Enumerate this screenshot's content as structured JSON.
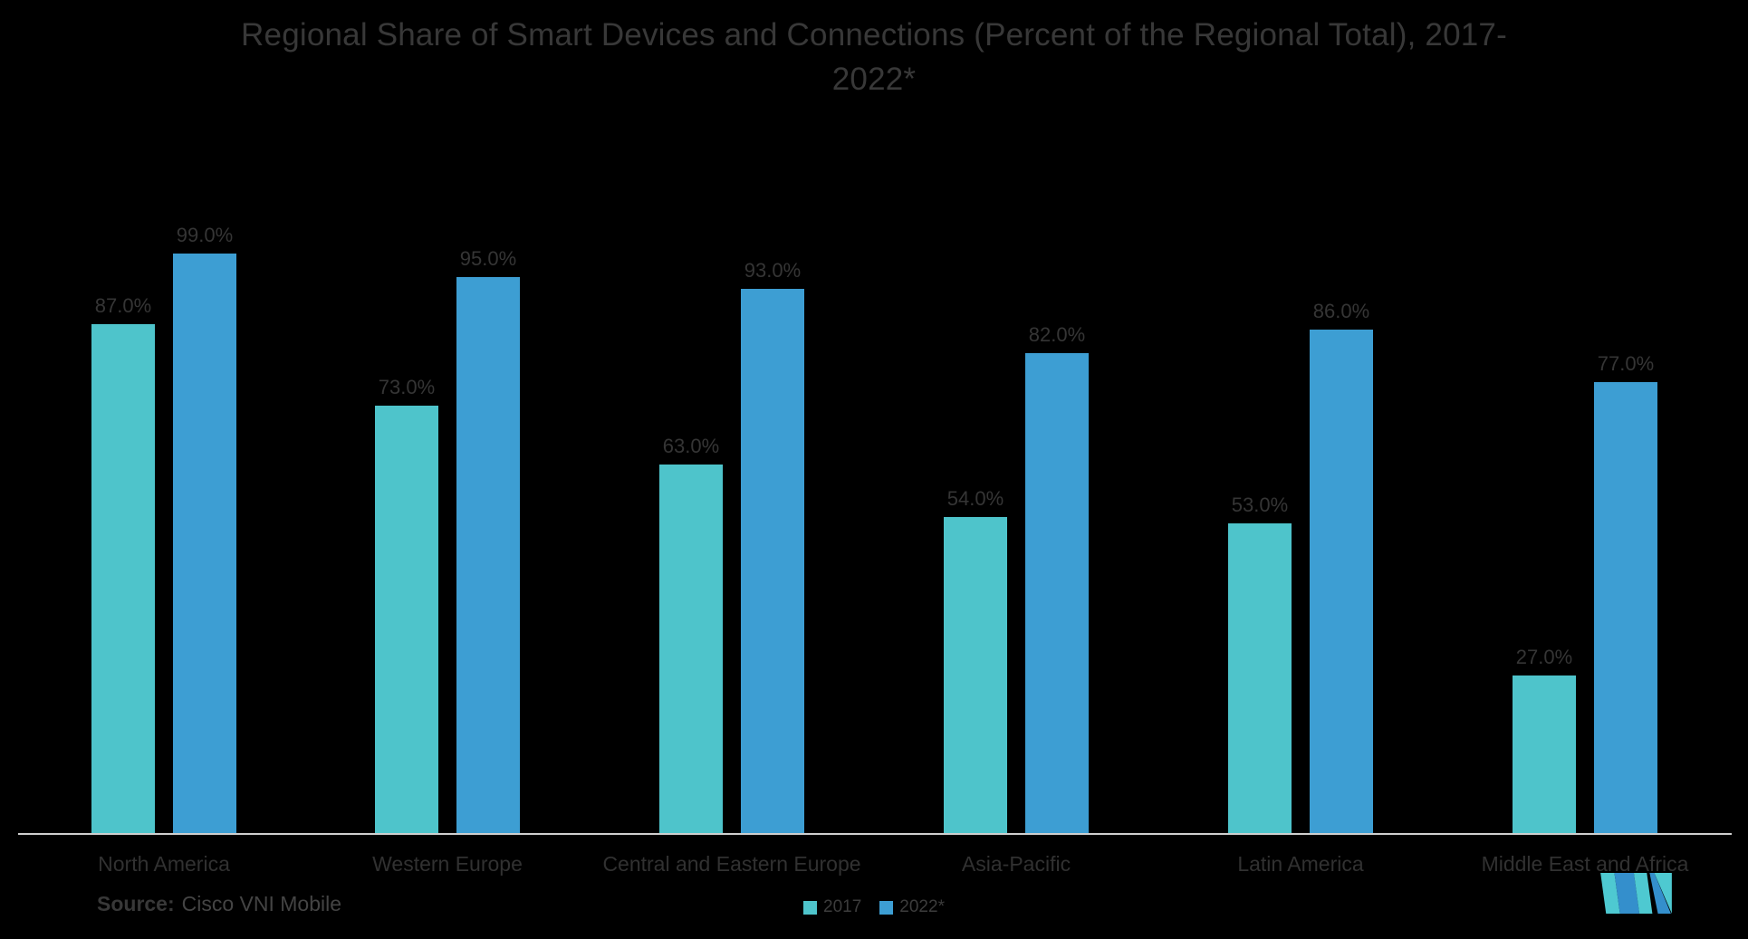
{
  "title": {
    "line1": "Regional Share of Smart Devices and Connections (Percent of the Regional Total), 2017-",
    "line2": "2022*"
  },
  "source": {
    "label": "Source:",
    "value": "Cisco VNI Mobile"
  },
  "colors": {
    "background": "#000000",
    "series_2017": "#4ec4cb",
    "series_2022": "#3d9ed3",
    "axis_line": "#cfcfcf",
    "text": "#383838",
    "logo_teal": "#4ec9d1",
    "logo_blue": "#348fcc"
  },
  "chart_data": {
    "type": "bar",
    "title": "Regional Share of Smart Devices and Connections (Percent of the Regional Total), 2017-2022*",
    "categories": [
      "North America",
      "Western Europe",
      "Central and Eastern Europe",
      "Asia-Pacific",
      "Latin America",
      "Middle East and Africa"
    ],
    "series": [
      {
        "name": "2017",
        "color": "#4ec4cb",
        "values": [
          87,
          73,
          63,
          54,
          53,
          27
        ],
        "labels": [
          "87.0%",
          "73.0%",
          "63.0%",
          "54.0%",
          "53.0%",
          "27.0%"
        ]
      },
      {
        "name": "2022*",
        "color": "#3d9ed3",
        "values": [
          99,
          95,
          93,
          82,
          86,
          77
        ],
        "labels": [
          "99.0%",
          "95.0%",
          "93.0%",
          "82.0%",
          "86.0%",
          "77.0%"
        ]
      }
    ],
    "xlabel": "",
    "ylabel": "",
    "ylim": [
      0,
      100
    ],
    "value_suffix": "%",
    "grid": false,
    "legend_position": "bottom-center",
    "data_labels": true
  }
}
